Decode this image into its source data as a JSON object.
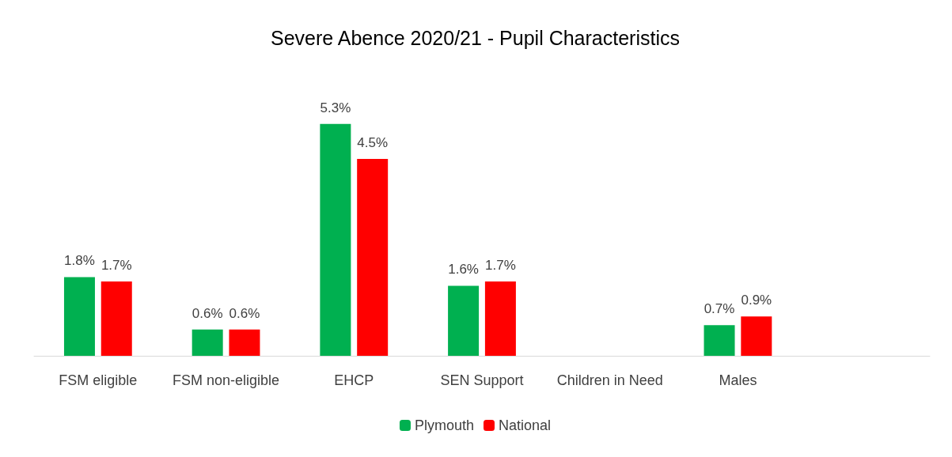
{
  "chart_data": {
    "type": "bar",
    "title": "Severe Abence 2020/21 - Pupil Characteristics",
    "categories": [
      "FSM eligible",
      "FSM non-eligible",
      "EHCP",
      "SEN Support",
      "Children in Need",
      "Males",
      null
    ],
    "series": [
      {
        "name": "Plymouth",
        "color": "#00b050",
        "values": [
          1.8,
          0.6,
          5.3,
          1.6,
          null,
          0.7,
          null
        ],
        "value_labels": [
          "1.8%",
          "0.6%",
          "5.3%",
          "1.6%",
          null,
          "0.7%",
          null
        ]
      },
      {
        "name": "National",
        "color": "#ff0000",
        "values": [
          1.7,
          0.6,
          4.5,
          1.7,
          null,
          0.9,
          null
        ],
        "value_labels": [
          "1.7%",
          "0.6%",
          "4.5%",
          "1.7%",
          null,
          "0.9%",
          null
        ]
      }
    ],
    "legend": "bottom"
  }
}
